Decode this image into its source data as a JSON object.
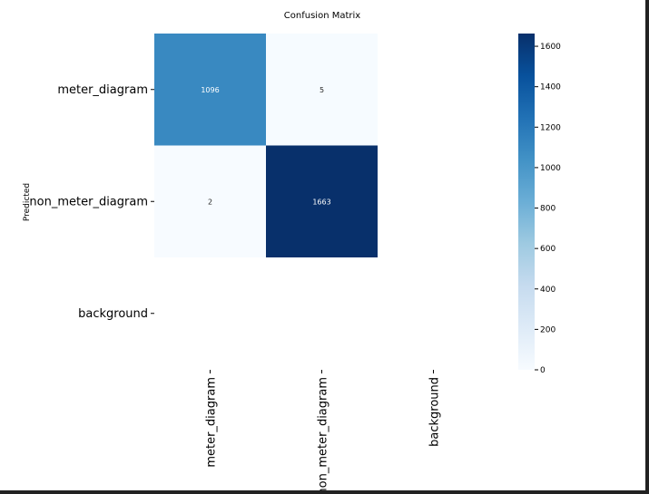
{
  "chart_data": {
    "type": "heatmap",
    "title": "Confusion Matrix",
    "xlabel": "",
    "ylabel": "Predicted",
    "x_categories": [
      "meter_diagram",
      "non_meter_diagram",
      "background"
    ],
    "y_categories": [
      "meter_diagram",
      "non_meter_diagram",
      "background"
    ],
    "cells": [
      {
        "row": 0,
        "col": 0,
        "value": 1096,
        "label": "1096"
      },
      {
        "row": 0,
        "col": 1,
        "value": 5,
        "label": "5"
      },
      {
        "row": 1,
        "col": 0,
        "value": 2,
        "label": "2"
      },
      {
        "row": 1,
        "col": 1,
        "value": 1663,
        "label": "1663"
      }
    ],
    "vmin": 0,
    "vmax": 1663,
    "colormap": [
      "#f7fbff",
      "#deebf7",
      "#c6dbef",
      "#9ecae1",
      "#6baed6",
      "#4292c6",
      "#2171b5",
      "#08519c",
      "#08306b"
    ],
    "colorbar_ticks": [
      {
        "value": 0,
        "label": "0"
      },
      {
        "value": 200,
        "label": "200"
      },
      {
        "value": 400,
        "label": "400"
      },
      {
        "value": 600,
        "label": "600"
      },
      {
        "value": 800,
        "label": "800"
      },
      {
        "value": 1000,
        "label": "1000"
      },
      {
        "value": 1200,
        "label": "1200"
      },
      {
        "value": 1400,
        "label": "1400"
      },
      {
        "value": 1600,
        "label": "1600"
      }
    ]
  }
}
